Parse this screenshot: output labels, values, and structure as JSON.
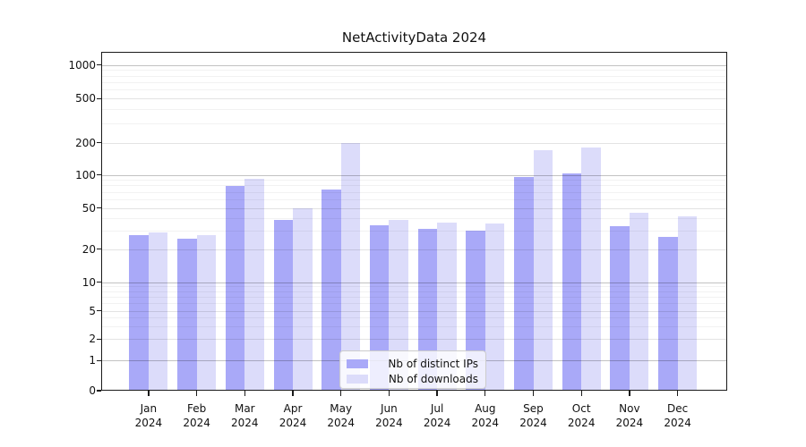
{
  "title": "NetActivityData 2024",
  "colors": {
    "ips_bar": "#a9a9f8",
    "downloads_bar": "#dcdcfa",
    "grid_power10": "rgba(0,0,0,0.24)",
    "grid_labeled": "rgba(0,0,0,0.11)",
    "grid_minor": "rgba(0,0,0,0.05)"
  },
  "legend": {
    "items": [
      {
        "label": "Nb of distinct IPs",
        "series": "ips"
      },
      {
        "label": "Nb of downloads",
        "series": "downloads"
      }
    ]
  },
  "y_axis": {
    "tick_labels": [
      "0",
      "1",
      "2",
      "5",
      "10",
      "20",
      "50",
      "100",
      "200",
      "500",
      "1000"
    ]
  },
  "x_axis": {
    "months": [
      "Jan",
      "Feb",
      "Mar",
      "Apr",
      "May",
      "Jun",
      "Jul",
      "Aug",
      "Sep",
      "Oct",
      "Nov",
      "Dec"
    ],
    "year": "2024"
  },
  "chart_data": {
    "type": "bar",
    "title": "NetActivityData 2024",
    "categories": [
      "Jan 2024",
      "Feb 2024",
      "Mar 2024",
      "Apr 2024",
      "May 2024",
      "Jun 2024",
      "Jul 2024",
      "Aug 2024",
      "Sep 2024",
      "Oct 2024",
      "Nov 2024",
      "Dec 2024"
    ],
    "series": [
      {
        "name": "Nb of distinct IPs",
        "values": [
          27,
          25,
          79,
          38,
          73,
          34,
          31,
          30,
          95,
          102,
          33,
          26
        ]
      },
      {
        "name": "Nb of downloads",
        "values": [
          29,
          27,
          92,
          50,
          198,
          38,
          36,
          35,
          170,
          182,
          45,
          41
        ]
      }
    ],
    "xlabel": "",
    "ylabel": "",
    "yscale": "symlog",
    "yticks": [
      0,
      1,
      2,
      5,
      10,
      20,
      50,
      100,
      200,
      500,
      1000
    ],
    "ylim": [
      0,
      1300
    ],
    "grid": "horizontal",
    "legend_position": "lower center"
  }
}
